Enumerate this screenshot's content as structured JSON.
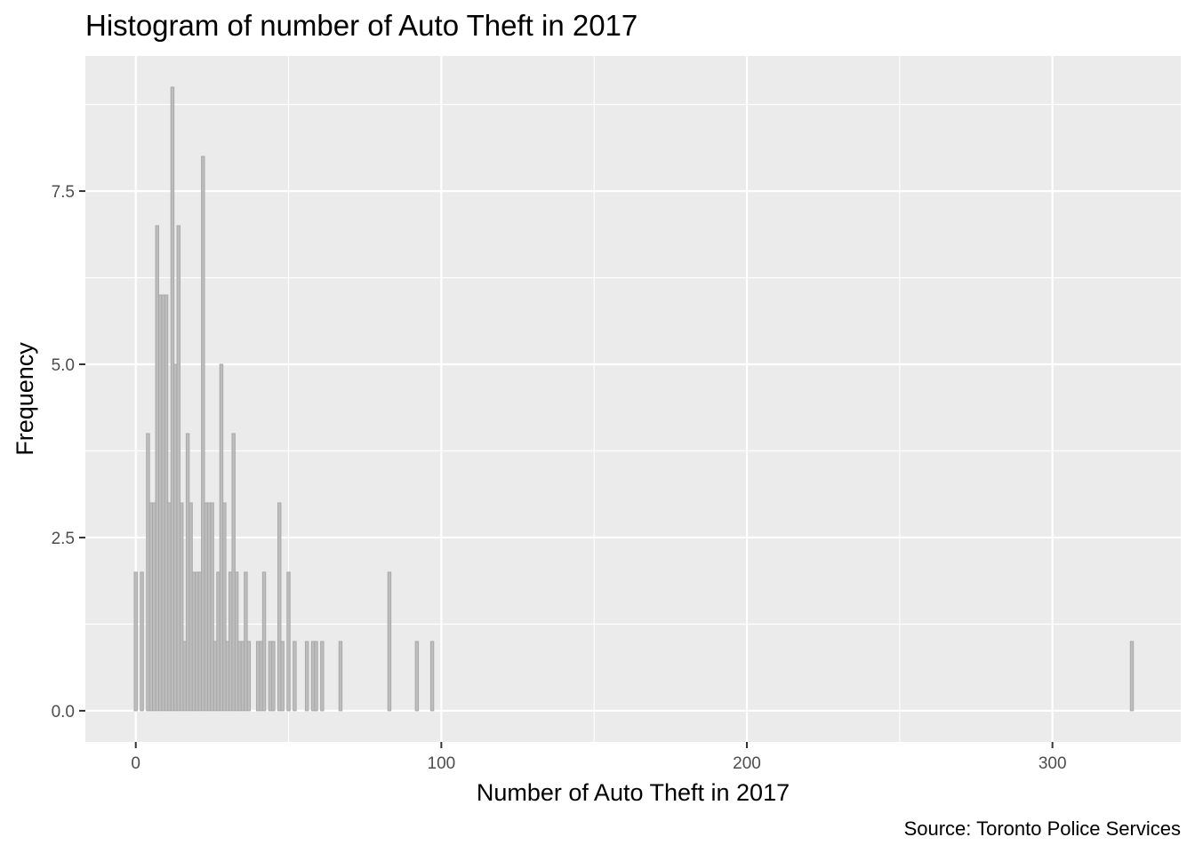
{
  "chart_data": {
    "type": "bar",
    "title": "Histogram of number of Auto Theft in 2017",
    "xlabel": "Number of Auto Theft in 2017",
    "ylabel": "Frequency",
    "caption": "Source: Toronto Police Services",
    "xlim": [
      -16.5,
      342
    ],
    "ylim": [
      -0.45,
      9.45
    ],
    "x_ticks": [
      0,
      100,
      200,
      300
    ],
    "x_tick_labels": [
      "0",
      "100",
      "200",
      "300"
    ],
    "y_ticks": [
      0,
      2.5,
      5,
      7.5
    ],
    "y_tick_labels": [
      "0.0",
      "2.5",
      "5.0",
      "7.5"
    ],
    "grid": true,
    "bin_width": 1,
    "bar_color": "#bdbdbd",
    "bar_outline": "#a9a9a9",
    "panel_background": "#ebebeb",
    "bins": [
      {
        "x": 0,
        "count": 2
      },
      {
        "x": 2,
        "count": 2
      },
      {
        "x": 4,
        "count": 4
      },
      {
        "x": 5,
        "count": 3
      },
      {
        "x": 6,
        "count": 3
      },
      {
        "x": 7,
        "count": 7
      },
      {
        "x": 8,
        "count": 6
      },
      {
        "x": 9,
        "count": 6
      },
      {
        "x": 10,
        "count": 6
      },
      {
        "x": 11,
        "count": 3
      },
      {
        "x": 12,
        "count": 9
      },
      {
        "x": 13,
        "count": 5
      },
      {
        "x": 14,
        "count": 7
      },
      {
        "x": 15,
        "count": 3
      },
      {
        "x": 16,
        "count": 1
      },
      {
        "x": 17,
        "count": 4
      },
      {
        "x": 18,
        "count": 3
      },
      {
        "x": 19,
        "count": 2
      },
      {
        "x": 20,
        "count": 2
      },
      {
        "x": 21,
        "count": 2
      },
      {
        "x": 22,
        "count": 8
      },
      {
        "x": 23,
        "count": 3
      },
      {
        "x": 24,
        "count": 3
      },
      {
        "x": 25,
        "count": 3
      },
      {
        "x": 26,
        "count": 1
      },
      {
        "x": 27,
        "count": 2
      },
      {
        "x": 28,
        "count": 5
      },
      {
        "x": 29,
        "count": 3
      },
      {
        "x": 30,
        "count": 1
      },
      {
        "x": 31,
        "count": 2
      },
      {
        "x": 32,
        "count": 4
      },
      {
        "x": 33,
        "count": 2
      },
      {
        "x": 34,
        "count": 1
      },
      {
        "x": 35,
        "count": 1
      },
      {
        "x": 36,
        "count": 2
      },
      {
        "x": 37,
        "count": 1
      },
      {
        "x": 40,
        "count": 1
      },
      {
        "x": 41,
        "count": 1
      },
      {
        "x": 42,
        "count": 2
      },
      {
        "x": 44,
        "count": 1
      },
      {
        "x": 45,
        "count": 1
      },
      {
        "x": 47,
        "count": 3
      },
      {
        "x": 48,
        "count": 1
      },
      {
        "x": 50,
        "count": 2
      },
      {
        "x": 52,
        "count": 1
      },
      {
        "x": 56,
        "count": 1
      },
      {
        "x": 58,
        "count": 1
      },
      {
        "x": 59,
        "count": 1
      },
      {
        "x": 61,
        "count": 1
      },
      {
        "x": 67,
        "count": 1
      },
      {
        "x": 83,
        "count": 2
      },
      {
        "x": 92,
        "count": 1
      },
      {
        "x": 97,
        "count": 1
      },
      {
        "x": 326,
        "count": 1
      }
    ]
  }
}
